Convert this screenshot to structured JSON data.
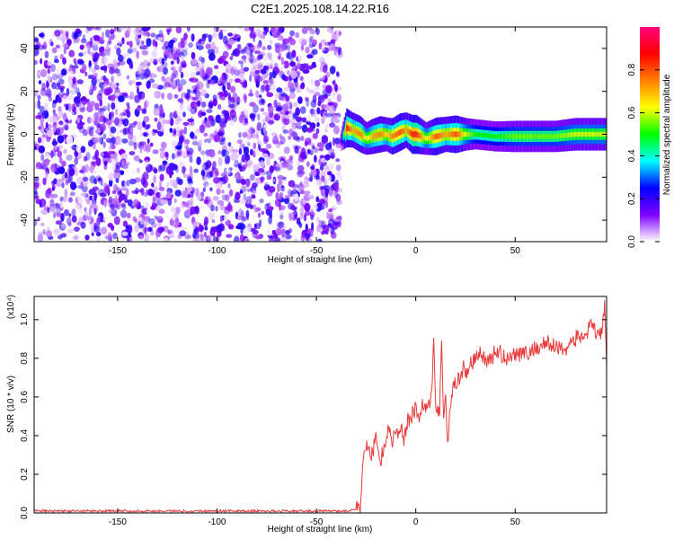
{
  "figure_title": "C2E1.2025.108.14.22.R16",
  "chart_data": [
    {
      "type": "heatmap",
      "title": "",
      "xlabel": "Height of straight line (km)",
      "ylabel": "Frequency (Hz)",
      "xlim": [
        -192,
        96
      ],
      "ylim": [
        -50,
        50
      ],
      "xticks": [
        -150,
        -100,
        -50,
        0,
        50
      ],
      "yticks": [
        -40,
        -20,
        0,
        20,
        40
      ],
      "colorbar": {
        "label": "Normalized spectral amplitude",
        "range": [
          0,
          1
        ],
        "ticks": [
          "0.0",
          "0.2",
          "0.4",
          "0.6",
          "0.8"
        ],
        "colors": [
          "#ffffff",
          "#8000ff",
          "#0000ff",
          "#00ffff",
          "#00ff00",
          "#ffff00",
          "#ff8000",
          "#ff0000",
          "#ff0080"
        ]
      },
      "noise_region_x": [
        -192,
        -38
      ],
      "noise_level": 0.15,
      "signal_track": {
        "x": [
          -38,
          -35,
          -32,
          -28,
          -25,
          -22,
          -18,
          -15,
          -12,
          -8,
          -5,
          -2,
          0,
          5,
          10,
          15,
          20,
          25,
          30,
          40,
          50,
          60,
          70,
          80,
          90,
          96
        ],
        "frequency": [
          -3,
          3,
          2,
          0,
          -2,
          -1,
          0,
          0,
          -1,
          1,
          2,
          0,
          0,
          -2,
          -1,
          0,
          0,
          0,
          0,
          -1,
          -1,
          -1,
          -1,
          0,
          0,
          0
        ],
        "amplitude": [
          0.15,
          0.85,
          0.7,
          0.75,
          0.6,
          0.7,
          0.75,
          0.65,
          0.75,
          0.8,
          0.7,
          0.85,
          0.85,
          0.6,
          0.8,
          0.7,
          0.8,
          0.6,
          0.5,
          0.5,
          0.55,
          0.55,
          0.55,
          0.6,
          0.6,
          0.6
        ]
      }
    },
    {
      "type": "line",
      "title": "",
      "xlabel": "Height of straight line (km)",
      "ylabel": "SNR (10 * v/v)",
      "scale_label": "(x10⁴)",
      "xlim": [
        -192,
        96
      ],
      "ylim": [
        0,
        1.12
      ],
      "xticks": [
        -150,
        -100,
        -50,
        0,
        50
      ],
      "yticks": [
        "0.0",
        "0.2",
        "0.4",
        "0.6",
        "0.8",
        "1.0"
      ],
      "color": "#e83a3a",
      "series": [
        {
          "x": [
            -192,
            -150,
            -100,
            -60,
            -35,
            -28,
            -27,
            -26,
            -24,
            -22,
            -20,
            -18,
            -16,
            -14,
            -12,
            -10,
            -8,
            -6,
            -4,
            -2,
            0,
            2,
            4,
            6,
            8,
            9,
            10,
            12,
            13,
            14,
            15,
            16,
            18,
            20,
            22,
            24,
            26,
            28,
            30,
            32,
            35,
            38,
            40,
            45,
            50,
            55,
            60,
            65,
            70,
            75,
            80,
            85,
            88,
            90,
            92,
            94,
            95,
            96
          ],
          "y": [
            0.01,
            0.01,
            0.01,
            0.01,
            0.01,
            0.02,
            0.2,
            0.33,
            0.35,
            0.3,
            0.4,
            0.25,
            0.35,
            0.42,
            0.38,
            0.4,
            0.45,
            0.38,
            0.48,
            0.5,
            0.55,
            0.5,
            0.57,
            0.55,
            0.6,
            0.91,
            0.58,
            0.5,
            0.92,
            0.5,
            0.6,
            0.35,
            0.62,
            0.68,
            0.7,
            0.75,
            0.72,
            0.78,
            0.8,
            0.82,
            0.8,
            0.78,
            0.85,
            0.8,
            0.83,
            0.82,
            0.85,
            0.88,
            0.86,
            0.85,
            0.9,
            0.92,
            0.96,
            0.95,
            0.9,
            0.97,
            1.1,
            0.75
          ]
        }
      ]
    }
  ]
}
